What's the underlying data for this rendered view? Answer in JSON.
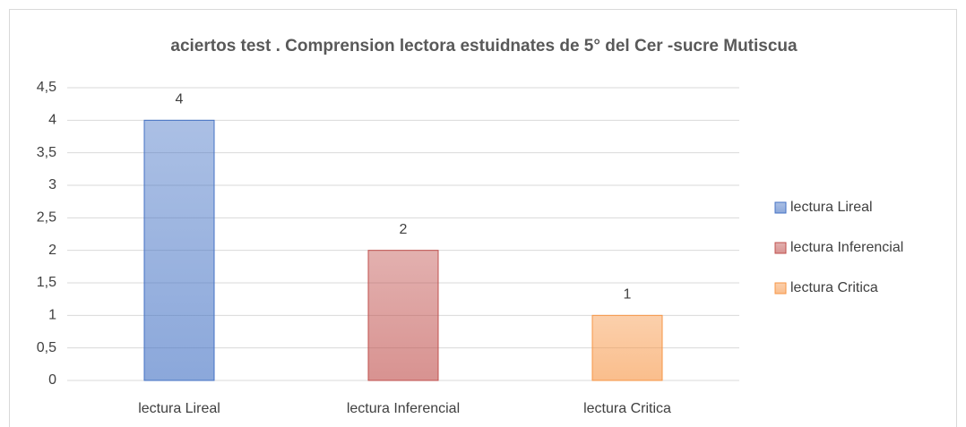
{
  "chart_data": {
    "type": "bar",
    "title": "aciertos test . Comprension lectora estuidnates de 5° del Cer -sucre Mutiscua",
    "categories": [
      "lectura Lireal",
      "lectura Inferencial",
      "lectura Critica"
    ],
    "values": [
      4,
      2,
      1
    ],
    "colors": [
      "#4472c4",
      "#c0504d",
      "#f79646"
    ],
    "ylim": [
      0,
      4.5
    ],
    "yticks": [
      0,
      {
        "value": 0.5,
        "label": "0,5"
      },
      1,
      {
        "value": 1.5,
        "label": "1,5"
      },
      2,
      {
        "value": 2.5,
        "label": "2,5"
      },
      3,
      {
        "value": 3.5,
        "label": "3,5"
      },
      4,
      {
        "value": 4.5,
        "label": "4,5"
      }
    ],
    "grid": true,
    "legend": "right"
  }
}
